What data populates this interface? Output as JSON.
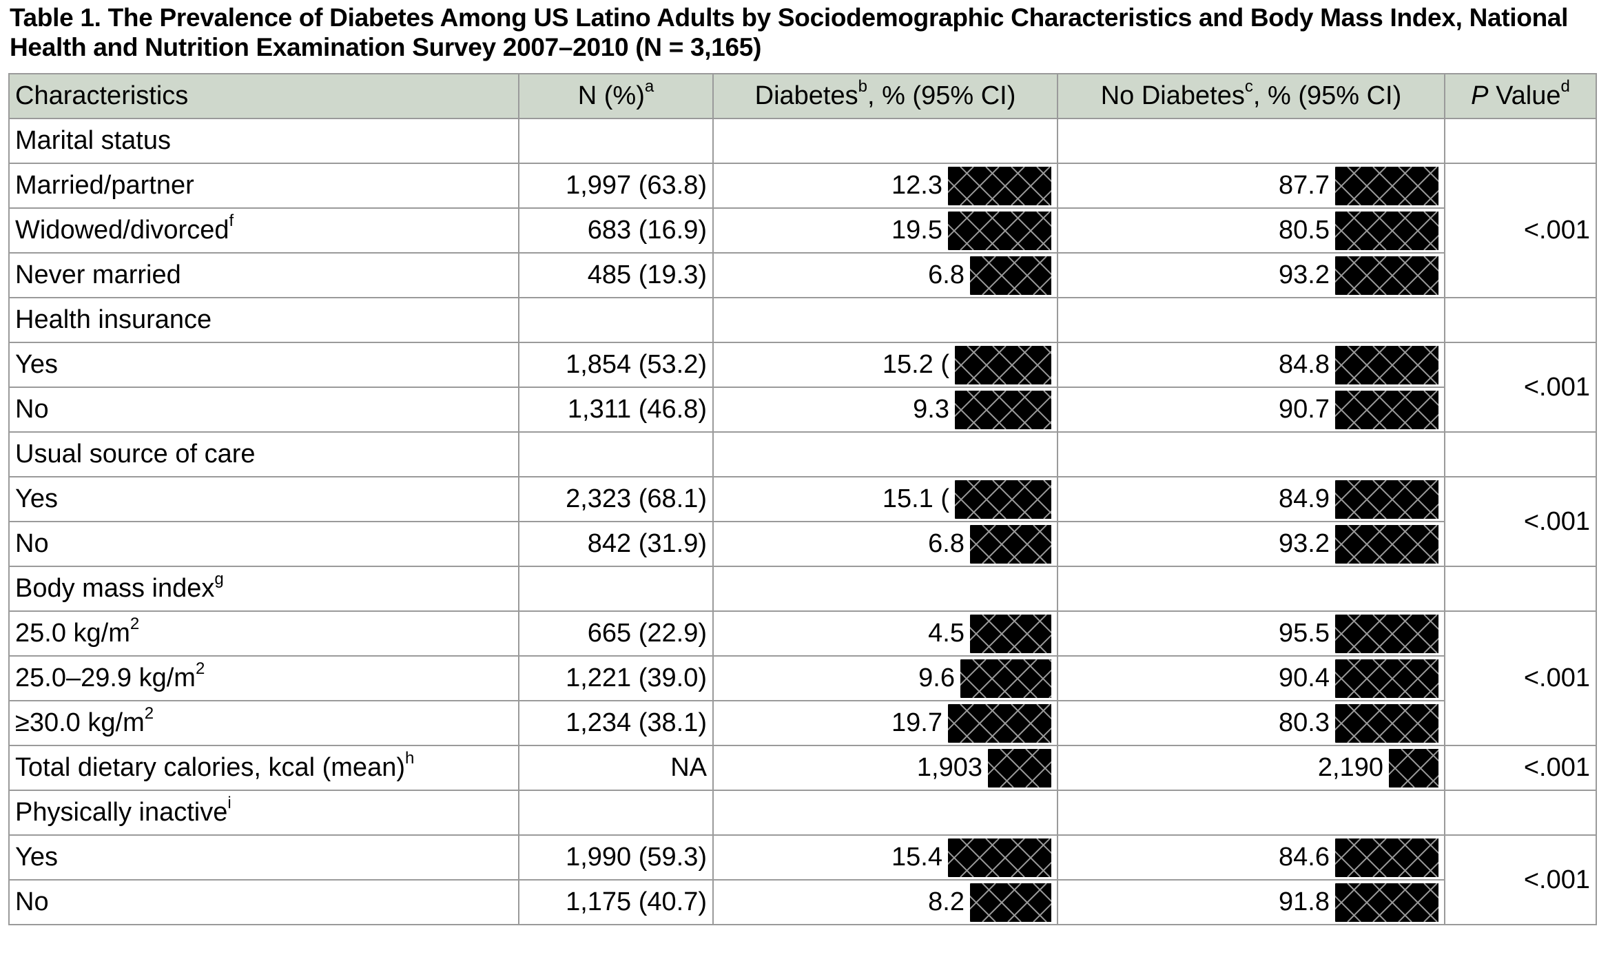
{
  "caption": {
    "line1": "Table 1. The Prevalence of Diabetes Among US Latino Adults by Sociodemographic Characteristics and Body Mass Index, National",
    "line2": "Health and Nutrition Examination Survey 2007–2010 (N = 3,165)"
  },
  "header": {
    "characteristics": "Characteristics",
    "n_pct": "N (%)",
    "n_sup": "a",
    "diabetes_a": "Diabetes",
    "diabetes_sup": "b",
    "diabetes_b": ", % (95% CI)",
    "nodiab_a": "No Diabetes",
    "nodiab_sup": "c",
    "nodiab_b": ", % (95% CI)",
    "p_italic": "P",
    "p_rest": " Value",
    "p_sup": "d"
  },
  "groups": {
    "marital": {
      "label": "Marital status",
      "p": "<.001",
      "rows": [
        {
          "label": "Married/partner",
          "sup": "",
          "n": "1,997 (63.8)",
          "d": "12.3",
          "nd": "87.7"
        },
        {
          "label": "Widowed/divorced",
          "sup": "f",
          "n": "683 (16.9)",
          "d": "19.5",
          "nd": "80.5"
        },
        {
          "label": "Never married",
          "sup": "",
          "n": "485 (19.3)",
          "d": "6.8",
          "nd": "93.2"
        }
      ]
    },
    "insurance": {
      "label": "Health insurance",
      "p": "<.001",
      "rows": [
        {
          "label": "Yes",
          "sup": "",
          "n": "1,854 (53.2)",
          "d": "15.2 (",
          "nd": "84.8"
        },
        {
          "label": "No",
          "sup": "",
          "n": "1,311 (46.8)",
          "d": "9.3",
          "nd": "90.7"
        }
      ]
    },
    "care": {
      "label": "Usual source of care",
      "p": "<.001",
      "rows": [
        {
          "label": "Yes",
          "sup": "",
          "n": "2,323 (68.1)",
          "d": "15.1 (",
          "nd": "84.9"
        },
        {
          "label": "No",
          "sup": "",
          "n": "842 (31.9)",
          "d": "6.8",
          "nd": "93.2"
        }
      ]
    },
    "bmi": {
      "label": "Body mass index",
      "sup": "g",
      "p": "<.001",
      "rows": [
        {
          "label": "25.0 kg/m",
          "sup2": "2",
          "n": "665 (22.9)",
          "d": "4.5",
          "nd": "95.5"
        },
        {
          "label": "25.0–29.9 kg/m",
          "sup2": "2",
          "n": "1,221 (39.0)",
          "d": "9.6",
          "nd": "90.4"
        },
        {
          "label": "≥30.0 kg/m",
          "sup2": "2",
          "n": "1,234 (38.1)",
          "d": "19.7",
          "nd": "80.3"
        }
      ]
    },
    "calories": {
      "label": "Total dietary calories, kcal (mean)",
      "sup": "h",
      "n": "NA",
      "d": "1,903",
      "nd": "2,190",
      "p": "<.001"
    },
    "inactive": {
      "label": "Physically inactive",
      "sup": "i",
      "p": "<.001",
      "rows": [
        {
          "label": "Yes",
          "sup": "",
          "n": "1,990 (59.3)",
          "d": "15.4",
          "nd": "84.6"
        },
        {
          "label": "No",
          "sup": "",
          "n": "1,175 (40.7)",
          "d": "8.2",
          "nd": "91.8"
        }
      ]
    }
  },
  "colors": {
    "header_bg": "#cfd8cc",
    "border": "#9a9a9a",
    "redaction": "#000000"
  }
}
